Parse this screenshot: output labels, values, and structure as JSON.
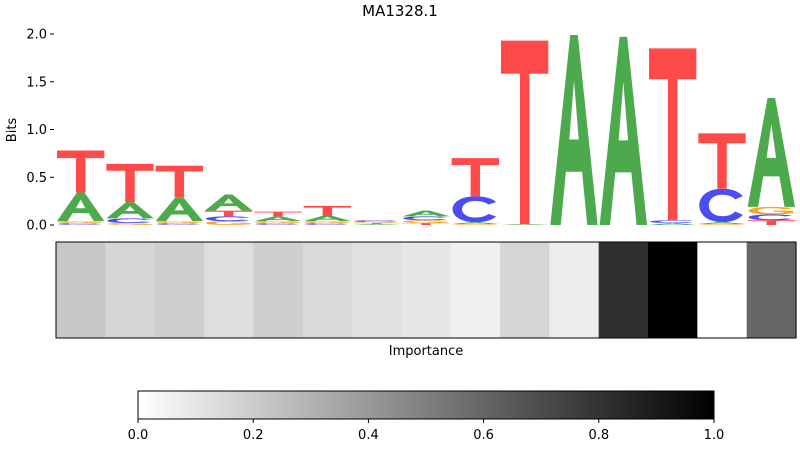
{
  "chart_data": [
    {
      "type": "sequence_logo",
      "title": "MA1328.1",
      "ylabel": "Bits",
      "ylim": [
        0,
        2.0
      ],
      "yticks": [
        "0.0",
        "0.5",
        "1.0",
        "1.5",
        "2.0"
      ],
      "letter_colors": {
        "A": "#4caa4c",
        "C": "#4a4cf5",
        "G": "#f5a623",
        "T": "#ff4a4a"
      },
      "positions": [
        {
          "T": 0.44,
          "A": 0.3,
          "C": 0.02,
          "G": 0.02
        },
        {
          "T": 0.4,
          "A": 0.17,
          "C": 0.05,
          "G": 0.02
        },
        {
          "T": 0.33,
          "A": 0.25,
          "C": 0.02,
          "G": 0.02
        },
        {
          "A": 0.17,
          "T": 0.06,
          "C": 0.05,
          "G": 0.04
        },
        {
          "A": 0.05,
          "T": 0.05,
          "C": 0.02,
          "G": 0.02
        },
        {
          "T": 0.1,
          "A": 0.06,
          "C": 0.02,
          "G": 0.02
        },
        {
          "C": 0.02,
          "A": 0.01,
          "T": 0.01,
          "G": 0.01
        },
        {
          "A": 0.06,
          "C": 0.04,
          "G": 0.03,
          "T": 0.02
        },
        {
          "T": 0.4,
          "C": 0.27,
          "A": 0.02,
          "G": 0.01
        },
        {
          "T": 1.92,
          "A": 0.01
        },
        {
          "A": 1.99
        },
        {
          "A": 1.97
        },
        {
          "T": 1.8,
          "C": 0.03,
          "A": 0.02
        },
        {
          "T": 0.58,
          "C": 0.35,
          "A": 0.02,
          "G": 0.01
        },
        {
          "A": 1.14,
          "G": 0.08,
          "C": 0.06,
          "T": 0.05
        }
      ]
    },
    {
      "type": "heatmap",
      "xlabel": "Importance",
      "values": [
        0.22,
        0.16,
        0.19,
        0.13,
        0.19,
        0.15,
        0.12,
        0.1,
        0.06,
        0.16,
        0.07,
        0.81,
        1.0,
        0.0,
        0.6
      ],
      "colormap": "Greys"
    },
    {
      "type": "colorbar",
      "range": [
        0.0,
        1.0
      ],
      "ticks": [
        "0.0",
        "0.2",
        "0.4",
        "0.6",
        "0.8",
        "1.0"
      ]
    }
  ]
}
